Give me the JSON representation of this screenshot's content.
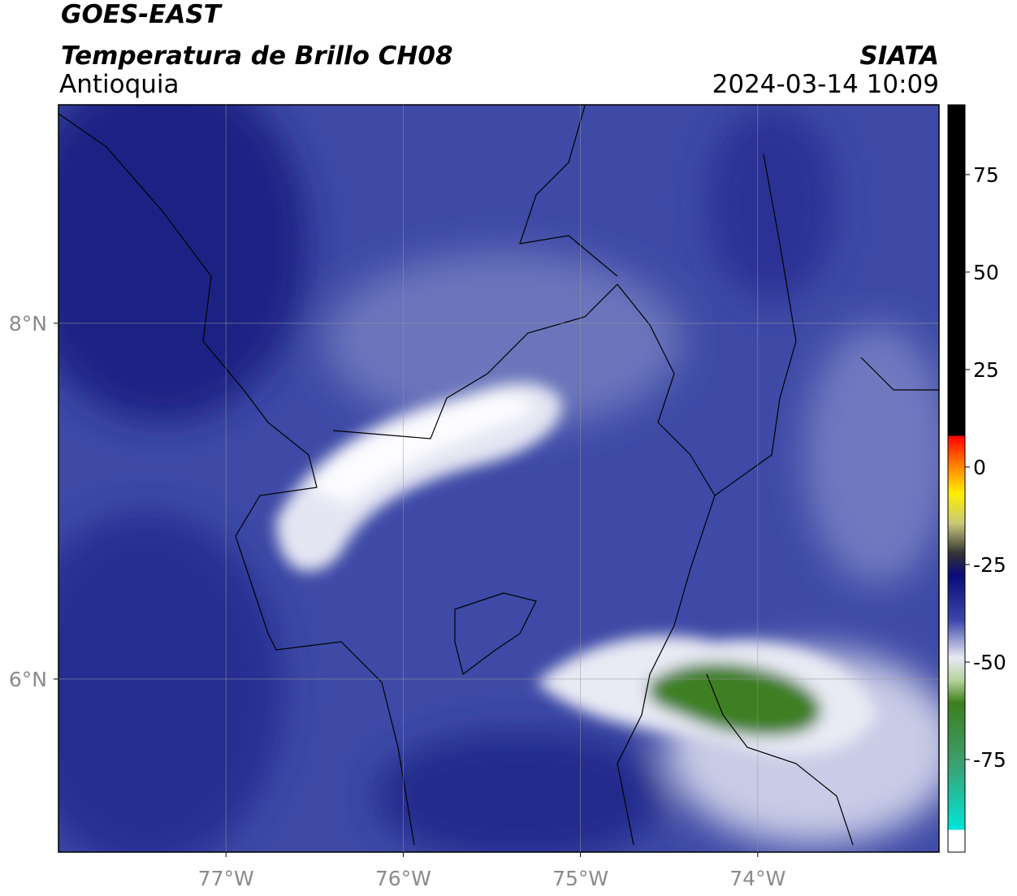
{
  "header": {
    "satellite": "GOES-EAST",
    "product": "Temperatura de Brillo CH08",
    "region": "Antioquia",
    "source": "SIATA",
    "datetime": "2024-03-14 10:09"
  },
  "map": {
    "xlim": [
      -77.945,
      -72.977
    ],
    "ylim": [
      5.027,
      9.228
    ],
    "xticks": [
      {
        "value": -77,
        "label": "77°W"
      },
      {
        "value": -76,
        "label": "76°W"
      },
      {
        "value": -75,
        "label": "75°W"
      },
      {
        "value": -74,
        "label": "74°W"
      }
    ],
    "yticks": [
      {
        "value": 8,
        "label": "8°N"
      },
      {
        "value": 6,
        "label": "6°N"
      }
    ],
    "grid": true
  },
  "colorbar": {
    "range": [
      -98.75,
      92.9
    ],
    "ticks": [
      75,
      50,
      25,
      0,
      -25,
      -50,
      -75
    ]
  }
}
